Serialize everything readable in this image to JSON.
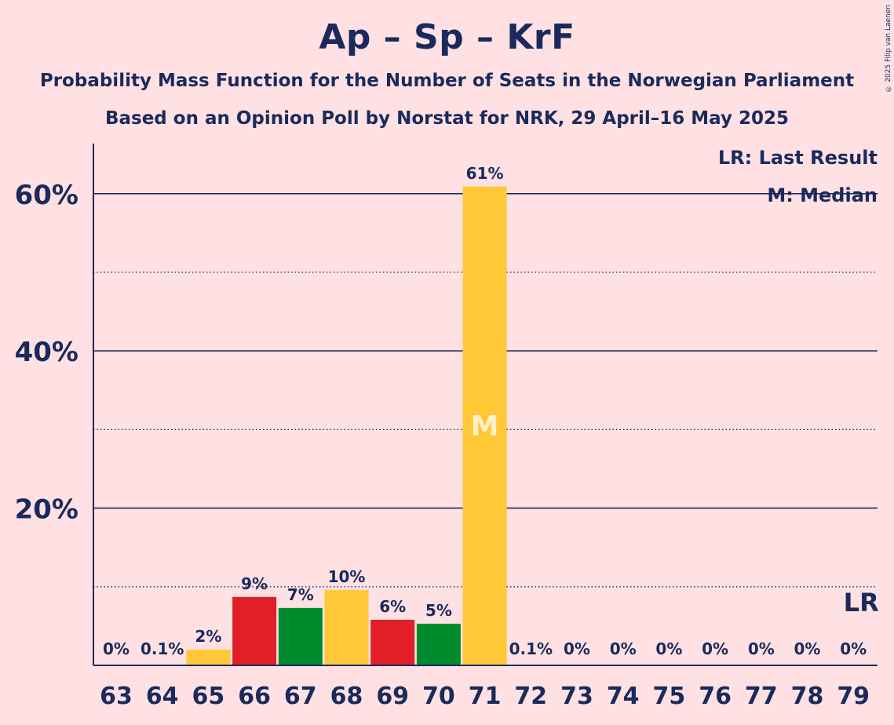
{
  "title": "Ap – Sp – KrF",
  "subtitle1": "Probability Mass Function for the Number of Seats in the Norwegian Parliament",
  "subtitle2": "Based on an Opinion Poll by Norstat for NRK, 29 April–16 May 2025",
  "copyright": "© 2025 Filip van Laenen",
  "legend": {
    "last_result": "LR: Last Result",
    "median": "M: Median"
  },
  "colors": {
    "background": "#FFE1E3",
    "text": "#1B2A5C",
    "yellow": "#FFC837",
    "red": "#E11F26",
    "green": "#008A2E"
  },
  "chart_data": {
    "type": "bar",
    "categories": [
      "63",
      "64",
      "65",
      "66",
      "67",
      "68",
      "69",
      "70",
      "71",
      "72",
      "73",
      "74",
      "75",
      "76",
      "77",
      "78",
      "79"
    ],
    "values": [
      0,
      0.1,
      2,
      8.7,
      7.3,
      9.6,
      5.8,
      5.3,
      60.9,
      0.1,
      0,
      0,
      0,
      0,
      0,
      0,
      0
    ],
    "value_labels": [
      "0%",
      "0.1%",
      "2%",
      "9%",
      "7%",
      "10%",
      "6%",
      "5%",
      "61%",
      "0.1%",
      "0%",
      "0%",
      "0%",
      "0%",
      "0%",
      "0%",
      "0%"
    ],
    "bar_colors": [
      "yellow",
      "yellow",
      "yellow",
      "red",
      "green",
      "yellow",
      "red",
      "green",
      "yellow",
      "yellow",
      "yellow",
      "yellow",
      "yellow",
      "yellow",
      "yellow",
      "yellow",
      "yellow"
    ],
    "ylim": [
      0,
      66
    ],
    "yticks": [
      20,
      40,
      60
    ],
    "ytick_labels": [
      "20%",
      "40%",
      "60%"
    ],
    "minor_gridlines": [
      10,
      30,
      50
    ],
    "median_category": "71",
    "median_marker": "M",
    "last_result_category": "79",
    "last_result_marker": "LR"
  }
}
